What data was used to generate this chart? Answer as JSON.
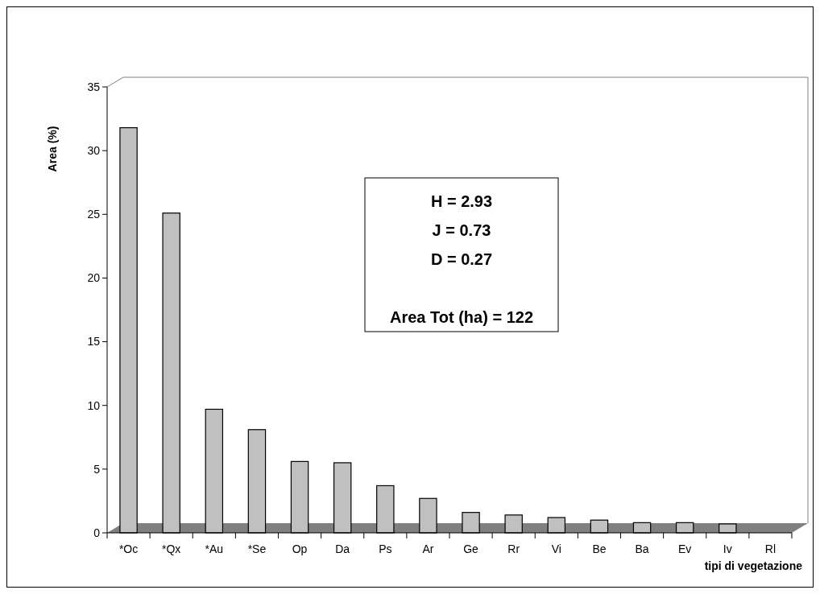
{
  "chart_data": {
    "type": "bar",
    "xlabel": "tipi di vegetazione",
    "ylabel": "Area (%)",
    "categories": [
      "*Oc",
      "*Qx",
      "*Au",
      "*Se",
      "Op",
      "Da",
      "Ps",
      "Ar",
      "Ge",
      "Rr",
      "Vi",
      "Be",
      "Ba",
      "Ev",
      "Iv",
      "Rl"
    ],
    "values": [
      31.8,
      25.1,
      9.7,
      8.1,
      5.6,
      5.5,
      3.7,
      2.7,
      1.6,
      1.4,
      1.2,
      1.0,
      0.8,
      0.8,
      0.7,
      0
    ],
    "color": "#c0c0c0",
    "ylim": [
      0,
      35
    ],
    "yticks": [
      0,
      5,
      10,
      15,
      20,
      25,
      30,
      35
    ],
    "grid": false,
    "annotations": [
      "H = 2.93",
      "J = 0.73",
      "D = 0.27",
      "Area Tot (ha) = 122"
    ]
  }
}
